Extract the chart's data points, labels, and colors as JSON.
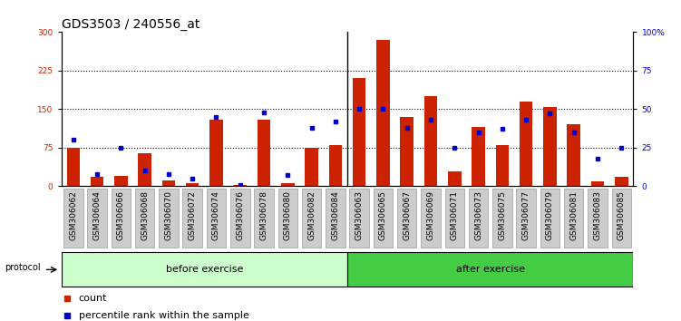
{
  "title": "GDS3503 / 240556_at",
  "samples": [
    "GSM306062",
    "GSM306064",
    "GSM306066",
    "GSM306068",
    "GSM306070",
    "GSM306072",
    "GSM306074",
    "GSM306076",
    "GSM306078",
    "GSM306080",
    "GSM306082",
    "GSM306084",
    "GSM306063",
    "GSM306065",
    "GSM306067",
    "GSM306069",
    "GSM306071",
    "GSM306073",
    "GSM306075",
    "GSM306077",
    "GSM306079",
    "GSM306081",
    "GSM306083",
    "GSM306085"
  ],
  "counts": [
    75,
    18,
    20,
    65,
    12,
    5,
    130,
    3,
    130,
    5,
    75,
    80,
    210,
    285,
    135,
    175,
    28,
    115,
    80,
    165,
    155,
    120,
    10,
    18
  ],
  "percentiles": [
    30,
    8,
    25,
    10,
    8,
    5,
    45,
    1,
    48,
    7,
    38,
    42,
    50,
    50,
    38,
    43,
    25,
    35,
    37,
    43,
    47,
    35,
    18,
    25
  ],
  "before_count": 12,
  "after_count": 12,
  "left_ylim": [
    0,
    300
  ],
  "right_ylim": [
    0,
    100
  ],
  "left_yticks": [
    0,
    75,
    150,
    225,
    300
  ],
  "right_yticks": [
    0,
    25,
    50,
    75,
    100
  ],
  "right_yticklabels": [
    "0",
    "25",
    "50",
    "75",
    "100%"
  ],
  "bar_color": "#cc2200",
  "marker_color": "#0000cc",
  "left_color": "#cc2200",
  "right_color": "#0000cc",
  "before_color": "#ccffcc",
  "after_color": "#44cc44",
  "tick_bg_color": "#cccccc",
  "protocol_label": "protocol",
  "before_label": "before exercise",
  "after_label": "after exercise",
  "count_legend": "count",
  "percentile_legend": "percentile rank within the sample",
  "title_fontsize": 10,
  "tick_fontsize": 6.5,
  "label_fontsize": 8,
  "legend_fontsize": 8
}
